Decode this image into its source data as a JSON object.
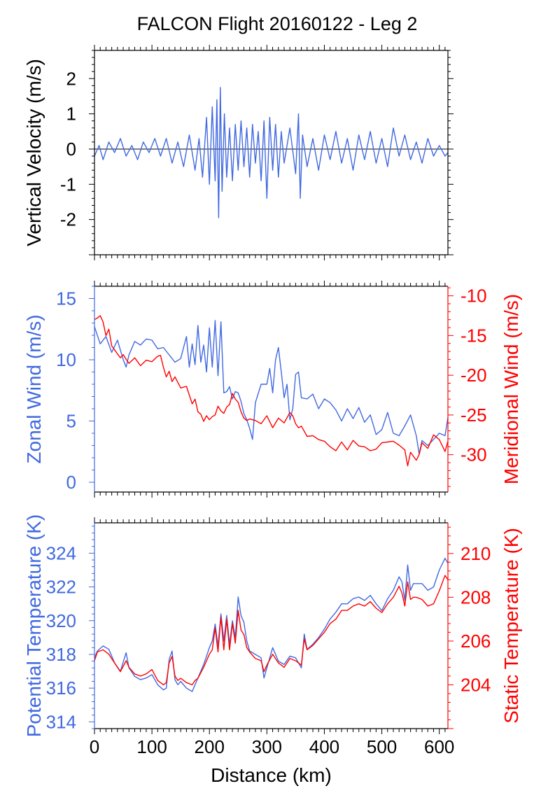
{
  "figure": {
    "title": "FALCON Flight 20160122 - Leg 2",
    "colors": {
      "blue": "#4169e1",
      "red": "#ff0000",
      "black": "#000000"
    }
  },
  "chart_data": [
    {
      "type": "line",
      "panel": "top",
      "xlim": [
        0,
        615
      ],
      "ylim": [
        -3,
        2.8
      ],
      "ylabel": "Vertical Velocity (m/s)",
      "yticks": [
        -2,
        -1,
        0,
        1,
        2
      ],
      "zero_line": true,
      "series": [
        {
          "color": "#4169e1",
          "x": [
            0,
            8,
            15,
            25,
            35,
            45,
            55,
            65,
            75,
            85,
            95,
            105,
            115,
            125,
            135,
            145,
            155,
            165,
            175,
            182,
            188,
            195,
            200,
            205,
            210,
            213,
            216,
            219,
            222,
            226,
            230,
            235,
            240,
            245,
            250,
            255,
            260,
            265,
            270,
            275,
            280,
            285,
            290,
            295,
            300,
            305,
            310,
            315,
            320,
            325,
            330,
            340,
            350,
            355,
            358,
            362,
            370,
            380,
            390,
            400,
            410,
            420,
            430,
            440,
            450,
            460,
            470,
            480,
            490,
            500,
            510,
            520,
            530,
            540,
            550,
            560,
            570,
            580,
            590,
            600,
            610,
            615
          ],
          "y": [
            -0.2,
            0.1,
            -0.3,
            0.2,
            -0.1,
            0.3,
            -0.2,
            0.1,
            -0.3,
            0.2,
            -0.1,
            0.3,
            -0.2,
            0.3,
            -0.4,
            0.2,
            -0.5,
            0.4,
            -0.6,
            0.3,
            -0.8,
            0.9,
            -1.0,
            1.2,
            -0.9,
            1.4,
            -1.95,
            1.75,
            -1.2,
            1.0,
            -0.8,
            0.6,
            -0.9,
            0.7,
            -0.6,
            0.8,
            -0.5,
            0.6,
            -0.8,
            0.7,
            -0.4,
            0.5,
            -0.9,
            0.8,
            -1.4,
            0.9,
            -0.6,
            0.7,
            -0.8,
            0.5,
            -0.4,
            0.6,
            -0.7,
            1.0,
            -1.4,
            0.4,
            -0.5,
            0.3,
            -0.6,
            0.4,
            -0.3,
            0.5,
            -0.4,
            0.3,
            -0.6,
            0.4,
            -0.3,
            0.5,
            -0.4,
            0.3,
            -0.5,
            0.6,
            -0.2,
            0.4,
            -0.3,
            0.2,
            -0.4,
            0.3,
            -0.2,
            0.1,
            -0.2,
            -0.1
          ]
        }
      ]
    },
    {
      "type": "line",
      "panel": "middle",
      "xlim": [
        0,
        615
      ],
      "ylim": [
        -0.8,
        16
      ],
      "ylabel": "Zonal Wind (m/s)",
      "yticks": [
        0,
        5,
        10,
        15
      ],
      "y2lim": [
        -34.7,
        -8.8
      ],
      "y2label": "Meridional Wind (m/s)",
      "y2ticks": [
        -30,
        -25,
        -20,
        -15,
        -10
      ],
      "series": [
        {
          "name": "Zonal Wind (m/s)",
          "axis": "left",
          "color": "#4169e1",
          "x": [
            0,
            10,
            20,
            30,
            40,
            50,
            55,
            60,
            70,
            80,
            90,
            100,
            110,
            120,
            130,
            140,
            150,
            160,
            165,
            170,
            175,
            180,
            185,
            190,
            195,
            200,
            205,
            210,
            215,
            220,
            225,
            230,
            235,
            240,
            245,
            250,
            255,
            260,
            265,
            270,
            275,
            280,
            290,
            300,
            305,
            310,
            315,
            320,
            325,
            330,
            335,
            340,
            345,
            350,
            355,
            360,
            370,
            380,
            390,
            400,
            410,
            420,
            430,
            440,
            450,
            460,
            470,
            480,
            490,
            500,
            510,
            520,
            530,
            540,
            550,
            560,
            565,
            570,
            580,
            590,
            600,
            610,
            615
          ],
          "y": [
            12.7,
            11.3,
            11.9,
            10.6,
            11.6,
            10.0,
            9.4,
            10.4,
            11.5,
            11.2,
            11.7,
            11.6,
            10.9,
            11.0,
            10.4,
            9.8,
            10.1,
            11.9,
            9.4,
            11.3,
            9.6,
            12.8,
            9.8,
            11.2,
            9.0,
            12.6,
            9.4,
            13.2,
            8.7,
            13.1,
            7.3,
            7.4,
            7.8,
            6.8,
            7.4,
            7.3,
            6.6,
            5.6,
            5.1,
            4.4,
            3.5,
            6.5,
            8.0,
            8.0,
            9.3,
            7.3,
            10.0,
            11.0,
            9.0,
            6.9,
            8.0,
            5.1,
            6.0,
            8.8,
            9.0,
            6.9,
            6.8,
            7.2,
            6.0,
            6.8,
            6.5,
            5.9,
            5.0,
            6.0,
            5.2,
            6.1,
            4.9,
            5.5,
            3.9,
            4.3,
            5.7,
            4.0,
            3.8,
            4.6,
            5.5,
            3.8,
            2.3,
            3.4,
            3.0,
            3.5,
            4.0,
            3.8,
            5.3
          ]
        },
        {
          "name": "Meridional Wind (m/s)",
          "axis": "right",
          "color": "#ff0000",
          "x": [
            0,
            5,
            10,
            15,
            20,
            25,
            30,
            35,
            40,
            45,
            50,
            55,
            60,
            70,
            80,
            90,
            100,
            110,
            115,
            120,
            125,
            130,
            135,
            140,
            150,
            160,
            170,
            175,
            180,
            185,
            190,
            195,
            200,
            205,
            210,
            215,
            220,
            225,
            230,
            235,
            240,
            245,
            250,
            255,
            260,
            265,
            270,
            280,
            290,
            300,
            310,
            320,
            330,
            340,
            345,
            350,
            355,
            360,
            370,
            380,
            390,
            400,
            410,
            420,
            430,
            440,
            450,
            460,
            470,
            480,
            490,
            500,
            510,
            520,
            530,
            540,
            545,
            550,
            560,
            565,
            570,
            580,
            590,
            600,
            610,
            615
          ],
          "y": [
            -13.0,
            -12.8,
            -12.5,
            -13.3,
            -15.0,
            -14.2,
            -16.3,
            -16.8,
            -17.3,
            -17.8,
            -17.4,
            -18.0,
            -18.5,
            -17.8,
            -18.8,
            -18.1,
            -18.3,
            -17.6,
            -17.5,
            -19.0,
            -20.2,
            -19.5,
            -20.8,
            -20.2,
            -21.6,
            -21.4,
            -23.6,
            -23.0,
            -24.6,
            -24.9,
            -25.8,
            -25.1,
            -25.6,
            -25.2,
            -25.0,
            -23.9,
            -24.5,
            -24.8,
            -24.0,
            -23.7,
            -22.3,
            -23.0,
            -23.4,
            -24.6,
            -25.4,
            -25.7,
            -25.5,
            -25.7,
            -26.1,
            -25.1,
            -26.6,
            -25.4,
            -26.0,
            -24.7,
            -25.1,
            -26.1,
            -26.6,
            -26.4,
            -27.7,
            -27.6,
            -28.1,
            -28.3,
            -29.0,
            -29.5,
            -28.4,
            -29.4,
            -28.2,
            -28.9,
            -29.0,
            -29.5,
            -29.3,
            -28.5,
            -28.4,
            -28.3,
            -28.8,
            -29.4,
            -31.4,
            -29.7,
            -30.7,
            -30.0,
            -28.5,
            -29.2,
            -27.5,
            -28.1,
            -29.6,
            -28.3
          ]
        }
      ]
    },
    {
      "type": "line",
      "panel": "bottom",
      "xlim": [
        0,
        615
      ],
      "xlabel": "Distance (km)",
      "xticks": [
        0,
        100,
        200,
        300,
        400,
        500,
        600
      ],
      "ylim": [
        313.6,
        325.8
      ],
      "ylabel": "Potential Temperature (K)",
      "yticks": [
        314,
        316,
        318,
        320,
        322,
        324
      ],
      "y2lim": [
        202,
        211.4
      ],
      "y2label": "Static Temperature (K)",
      "y2ticks": [
        204,
        206,
        208,
        210
      ],
      "series": [
        {
          "name": "Potential Temperature (K)",
          "axis": "left",
          "color": "#4169e1",
          "x": [
            0,
            5,
            15,
            25,
            35,
            45,
            55,
            60,
            70,
            80,
            90,
            100,
            110,
            120,
            125,
            130,
            135,
            140,
            145,
            150,
            160,
            170,
            175,
            180,
            190,
            200,
            205,
            210,
            215,
            220,
            225,
            230,
            235,
            240,
            245,
            250,
            255,
            260,
            265,
            270,
            280,
            290,
            295,
            300,
            310,
            320,
            330,
            340,
            350,
            360,
            365,
            370,
            380,
            390,
            400,
            410,
            420,
            430,
            440,
            450,
            460,
            470,
            480,
            490,
            500,
            510,
            520,
            530,
            535,
            540,
            545,
            550,
            555,
            560,
            570,
            580,
            590,
            600,
            610,
            615
          ],
          "y": [
            317.8,
            318.2,
            318.5,
            318.3,
            317.5,
            317.0,
            318.1,
            317.2,
            316.7,
            316.5,
            316.6,
            316.8,
            316.2,
            315.9,
            316.0,
            317.7,
            318.2,
            316.5,
            316.2,
            316.4,
            316.0,
            315.8,
            316.2,
            316.6,
            317.4,
            318.4,
            318.8,
            319.8,
            318.5,
            320.4,
            318.8,
            320.3,
            318.6,
            320.0,
            319.0,
            321.4,
            320.3,
            319.9,
            318.8,
            318.2,
            318.0,
            317.8,
            316.6,
            317.2,
            318.4,
            317.6,
            317.4,
            317.9,
            317.8,
            317.2,
            319.2,
            318.3,
            318.6,
            319.0,
            319.5,
            320.1,
            320.5,
            321.0,
            321.0,
            321.3,
            321.4,
            321.2,
            321.5,
            321.0,
            320.6,
            321.3,
            321.8,
            322.6,
            322.3,
            321.2,
            323.3,
            321.8,
            322.2,
            322.2,
            322.2,
            321.8,
            322.0,
            323.0,
            323.7,
            323.4
          ]
        },
        {
          "name": "Static Temperature (K)",
          "axis": "right",
          "color": "#ff0000",
          "x": [
            0,
            5,
            15,
            25,
            35,
            45,
            55,
            60,
            70,
            80,
            90,
            100,
            110,
            120,
            125,
            130,
            135,
            140,
            145,
            150,
            160,
            170,
            175,
            180,
            190,
            200,
            205,
            210,
            215,
            220,
            225,
            230,
            235,
            240,
            245,
            250,
            255,
            260,
            265,
            270,
            280,
            290,
            295,
            300,
            310,
            320,
            330,
            340,
            350,
            360,
            365,
            370,
            380,
            390,
            400,
            410,
            420,
            430,
            440,
            450,
            460,
            470,
            480,
            490,
            500,
            510,
            520,
            530,
            535,
            540,
            545,
            550,
            555,
            560,
            570,
            580,
            590,
            600,
            610,
            615
          ],
          "y": [
            205.1,
            205.5,
            205.6,
            205.4,
            205.0,
            204.6,
            205.1,
            204.8,
            204.5,
            204.4,
            204.5,
            204.7,
            204.2,
            204.0,
            204.1,
            205.0,
            205.3,
            204.4,
            204.2,
            204.3,
            204.1,
            204.0,
            204.2,
            204.3,
            204.8,
            205.4,
            205.6,
            206.6,
            205.5,
            207.1,
            205.6,
            207.0,
            205.6,
            206.8,
            205.9,
            207.4,
            206.5,
            206.3,
            205.7,
            205.5,
            205.2,
            205.1,
            204.6,
            204.9,
            205.4,
            205.0,
            204.8,
            205.2,
            205.1,
            204.9,
            206.1,
            205.6,
            205.8,
            206.1,
            206.4,
            206.8,
            207.0,
            207.4,
            207.4,
            207.6,
            207.7,
            207.6,
            207.8,
            207.5,
            207.3,
            207.7,
            208.0,
            208.5,
            208.2,
            207.6,
            208.7,
            207.9,
            208.0,
            208.0,
            207.9,
            207.6,
            207.7,
            208.3,
            209.0,
            208.8
          ]
        }
      ]
    }
  ]
}
